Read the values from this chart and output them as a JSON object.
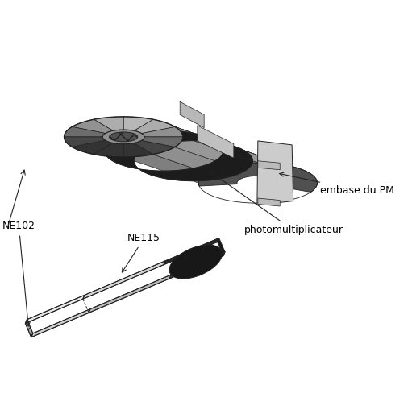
{
  "bg_color": "#ffffff",
  "labels": {
    "embase_du_PM": "embase du PM",
    "photomultiplicateur": "photomultiplicateur",
    "NE115": "NE115",
    "NE102": "NE102"
  },
  "fontsize": 9,
  "line_color": "#222222"
}
